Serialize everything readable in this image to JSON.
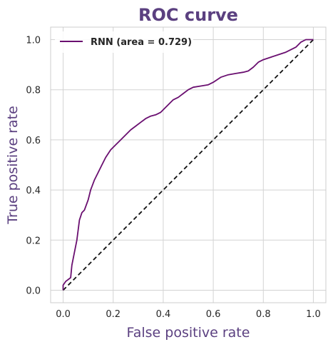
{
  "chart_data": {
    "type": "line",
    "title": "ROC curve",
    "xlabel": "False positive rate",
    "ylabel": "True positive rate",
    "xlim": [
      -0.05,
      1.05
    ],
    "ylim": [
      -0.05,
      1.05
    ],
    "xticks": [
      "0.0",
      "0.2",
      "0.4",
      "0.6",
      "0.8",
      "1.0"
    ],
    "yticks": [
      "0.0",
      "0.2",
      "0.4",
      "0.6",
      "0.8",
      "1.0"
    ],
    "grid": true,
    "legend_position": "upper-left",
    "series": [
      {
        "name": "RNN (area = 0.729)",
        "color": "#6a0f70",
        "style": "solid",
        "x": [
          0.0,
          0.0,
          0.01,
          0.03,
          0.035,
          0.045,
          0.055,
          0.06,
          0.065,
          0.075,
          0.085,
          0.1,
          0.11,
          0.125,
          0.14,
          0.155,
          0.17,
          0.19,
          0.21,
          0.23,
          0.25,
          0.27,
          0.29,
          0.31,
          0.33,
          0.35,
          0.37,
          0.39,
          0.4,
          0.42,
          0.44,
          0.46,
          0.48,
          0.5,
          0.52,
          0.55,
          0.58,
          0.6,
          0.63,
          0.66,
          0.69,
          0.72,
          0.74,
          0.76,
          0.78,
          0.8,
          0.83,
          0.86,
          0.89,
          0.91,
          0.93,
          0.95,
          0.97,
          1.0
        ],
        "y": [
          0.0,
          0.02,
          0.035,
          0.05,
          0.1,
          0.15,
          0.2,
          0.24,
          0.28,
          0.31,
          0.32,
          0.36,
          0.4,
          0.44,
          0.47,
          0.5,
          0.53,
          0.56,
          0.58,
          0.6,
          0.62,
          0.64,
          0.655,
          0.67,
          0.685,
          0.695,
          0.7,
          0.71,
          0.72,
          0.74,
          0.76,
          0.77,
          0.785,
          0.8,
          0.81,
          0.815,
          0.82,
          0.83,
          0.85,
          0.86,
          0.865,
          0.87,
          0.875,
          0.89,
          0.91,
          0.92,
          0.93,
          0.94,
          0.95,
          0.96,
          0.97,
          0.99,
          1.0,
          1.0
        ]
      },
      {
        "name": "",
        "color": "#111111",
        "style": "dashed",
        "x": [
          0.0,
          1.0
        ],
        "y": [
          0.0,
          1.0
        ]
      }
    ]
  },
  "colors": {
    "title": "#5b4080",
    "axis_label": "#5b4080",
    "grid": "#d3d3d3",
    "frame": "#cccccc"
  }
}
